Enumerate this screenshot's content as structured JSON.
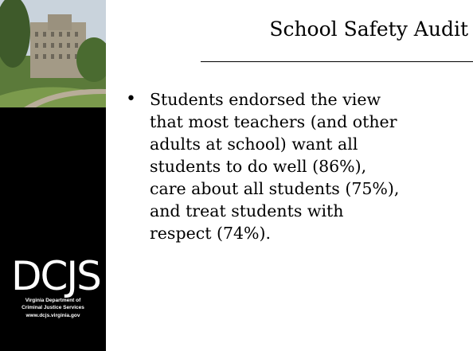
{
  "sidebar": {
    "logo": "DCJS",
    "agency_lines": [
      "Virginia Department of",
      "Criminal Justice Services",
      "www.dcjs.virginia.gov"
    ]
  },
  "title": "School Safety Audit",
  "bullets": [
    {
      "lines": [
        "Students endorsed the view",
        "that most teachers (and other",
        "adults at school) want all",
        "students to do well (86%),",
        "care about all students (75%),",
        "and treat students with",
        "respect (74%)."
      ]
    }
  ]
}
